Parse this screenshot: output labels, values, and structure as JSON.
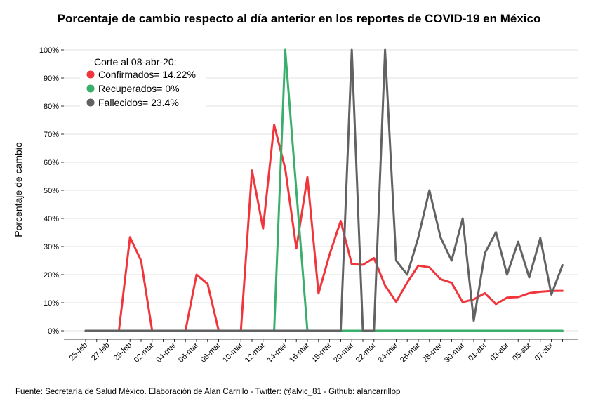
{
  "chart_data": {
    "type": "line",
    "title": "Porcentaje de cambio respecto al día anterior en los reportes de COVID-19 en México",
    "ylabel": "Porcentaje de cambio",
    "xlabel": "",
    "ylim": [
      0,
      100
    ],
    "yticks": [
      0,
      10,
      20,
      30,
      40,
      50,
      60,
      70,
      80,
      90,
      100
    ],
    "ytick_labels": [
      "0%",
      "10%",
      "20%",
      "30%",
      "40%",
      "50%",
      "60%",
      "70%",
      "80%",
      "90%",
      "100%"
    ],
    "grid": "horizontal",
    "legend_placement": "top-left",
    "legend_title": "Corte al 08-abr-20:",
    "x_start": "25-feb",
    "x_end": "08-abr",
    "xtick_labels": [
      "25-feb",
      "27-feb",
      "29-feb",
      "02-mar",
      "04-mar",
      "06-mar",
      "08-mar",
      "10-mar",
      "12-mar",
      "14-mar",
      "16-mar",
      "18-mar",
      "20-mar",
      "22-mar",
      "24-mar",
      "26-mar",
      "28-mar",
      "30-mar",
      "01-abr",
      "03-abr",
      "05-abr",
      "07-abr"
    ],
    "series": [
      {
        "name": "Confirmados= 14.22%",
        "color": "#f0363c",
        "values": [
          0,
          0,
          0,
          0,
          33.3,
          25,
          0,
          0,
          0,
          0,
          20,
          16.7,
          0,
          0,
          0,
          57.1,
          36.4,
          73.3,
          57.7,
          29.3,
          54.7,
          13.3,
          27.2,
          39.1,
          23.7,
          23.5,
          25.9,
          16.1,
          10.3,
          17.2,
          23.2,
          22.6,
          18.4,
          17.1,
          10.2,
          11.2,
          13.4,
          9.5,
          11.8,
          12.0,
          13.4,
          13.9,
          14.2,
          14.22
        ]
      },
      {
        "name": "Recuperados= 0%",
        "color": "#3aaf6b",
        "values": [
          0,
          0,
          0,
          0,
          0,
          0,
          0,
          0,
          0,
          0,
          0,
          0,
          0,
          0,
          0,
          0,
          0,
          0,
          100,
          50,
          0,
          0,
          0,
          0,
          0,
          0,
          0,
          0,
          0,
          0,
          0,
          0,
          0,
          0,
          0,
          0,
          0,
          0,
          0,
          0,
          0,
          0,
          0,
          0
        ]
      },
      {
        "name": "Fallecidos= 23.4%",
        "color": "#626262",
        "values": [
          0,
          0,
          0,
          0,
          0,
          0,
          0,
          0,
          0,
          0,
          0,
          0,
          0,
          0,
          0,
          0,
          0,
          0,
          0,
          0,
          0,
          0,
          0,
          0,
          100,
          0,
          0,
          100,
          25,
          20,
          33.3,
          50,
          33.3,
          25,
          40,
          3.6,
          27.6,
          35.1,
          20,
          31.7,
          19.0,
          33,
          12.9,
          23.4
        ]
      }
    ]
  },
  "footer": "Fuente: Secretaría de Salud México. Elaboración de Alan Carrillo - Twitter: @alvic_81 - Github: alancarrillop"
}
